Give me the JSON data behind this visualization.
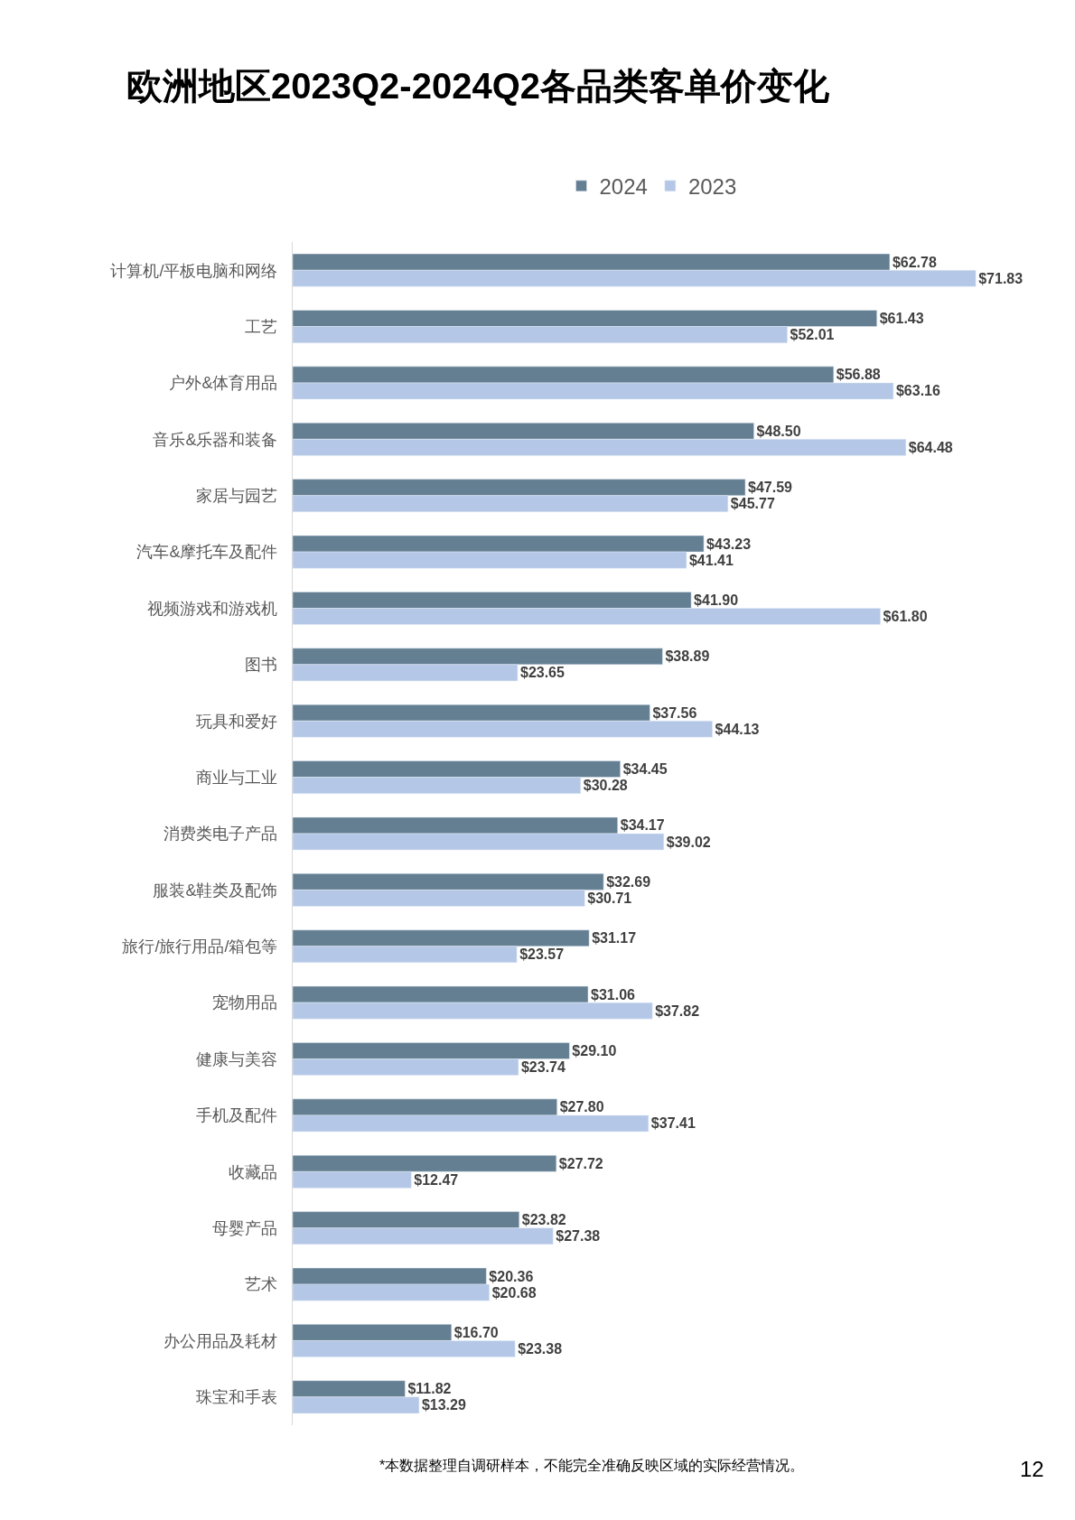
{
  "chart_data": {
    "type": "bar",
    "orientation": "horizontal",
    "title": "欧洲地区2023Q2-2024Q2各品类客单价变化",
    "categories": [
      "计算机/平板电脑和网络",
      "工艺",
      "户外&体育用品",
      "音乐&乐器和装备",
      "家居与园艺",
      "汽车&摩托车及配件",
      "视频游戏和游戏机",
      "图书",
      "玩具和爱好",
      "商业与工业",
      "消费类电子产品",
      "服装&鞋类及配饰",
      "旅行/旅行用品/箱包等",
      "宠物用品",
      "健康与美容",
      "手机及配件",
      "收藏品",
      "母婴产品",
      "艺术",
      "办公用品及耗材",
      "珠宝和手表"
    ],
    "series": [
      {
        "name": "2024",
        "color": "#647f92",
        "values": [
          62.78,
          61.43,
          56.88,
          48.5,
          47.59,
          43.23,
          41.9,
          38.89,
          37.56,
          34.45,
          34.17,
          32.69,
          31.17,
          31.06,
          29.1,
          27.8,
          27.72,
          23.82,
          20.36,
          16.7,
          11.82
        ],
        "value_labels": [
          "$62.78",
          "$61.43",
          "$56.88",
          "$48.50",
          "$47.59",
          "$43.23",
          "$41.90",
          "$38.89",
          "$37.56",
          "$34.45",
          "$34.17",
          "$32.69",
          "$31.17",
          "$31.06",
          "$29.10",
          "$27.80",
          "$27.72",
          "$23.82",
          "$20.36",
          "$16.70",
          "$11.82"
        ]
      },
      {
        "name": "2023",
        "color": "#b4c7e7",
        "values": [
          71.83,
          52.01,
          63.16,
          64.48,
          45.77,
          41.41,
          61.8,
          23.65,
          44.13,
          30.28,
          39.02,
          30.71,
          23.57,
          37.82,
          23.74,
          37.41,
          12.47,
          27.38,
          20.68,
          23.38,
          13.29
        ],
        "value_labels": [
          "$71.83",
          "$52.01",
          "$63.16",
          "$64.48",
          "$45.77",
          "$41.41",
          "$61.80",
          "$23.65",
          "$44.13",
          "$30.28",
          "$39.02",
          "$30.71",
          "$23.57",
          "$37.82",
          "$23.74",
          "$37.41",
          "$12.47",
          "$27.38",
          "$20.68",
          "$23.38",
          "$13.29"
        ]
      }
    ],
    "tick_labels": "y",
    "legend": "top",
    "annotations": [
      "*本数据整理自调研样本，不能完全准确反映区域的实际经营情况。",
      "12"
    ]
  }
}
